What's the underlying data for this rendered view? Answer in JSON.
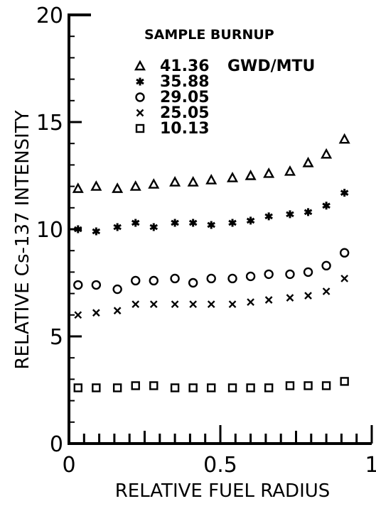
{
  "chart_data": {
    "type": "scatter",
    "xlabel": "RELATIVE FUEL RADIUS",
    "ylabel": "RELATIVE Cs-137 INTENSITY",
    "xlim": [
      0,
      1
    ],
    "ylim": [
      0,
      20
    ],
    "x_ticks": [
      "0",
      "0.5",
      "1"
    ],
    "y_ticks": [
      "0",
      "5",
      "10",
      "15",
      "20"
    ],
    "legend": {
      "title": "SAMPLE BURNUP",
      "placement": "top-right",
      "unit": "GWD/MTU"
    },
    "x": [
      0.03,
      0.09,
      0.16,
      0.22,
      0.28,
      0.35,
      0.41,
      0.47,
      0.54,
      0.6,
      0.66,
      0.73,
      0.79,
      0.85,
      0.91
    ],
    "series": [
      {
        "name": "41.36",
        "marker": "triangle",
        "values": [
          11.9,
          12.0,
          11.9,
          12.0,
          12.1,
          12.2,
          12.2,
          12.3,
          12.4,
          12.5,
          12.6,
          12.7,
          13.1,
          13.5,
          14.2
        ]
      },
      {
        "name": "35.88",
        "marker": "star",
        "values": [
          10.0,
          9.9,
          10.1,
          10.3,
          10.1,
          10.3,
          10.3,
          10.2,
          10.3,
          10.4,
          10.6,
          10.7,
          10.8,
          11.1,
          11.7
        ]
      },
      {
        "name": "29.05",
        "marker": "circle",
        "values": [
          7.4,
          7.4,
          7.2,
          7.6,
          7.6,
          7.7,
          7.5,
          7.7,
          7.7,
          7.8,
          7.9,
          7.9,
          8.0,
          8.3,
          8.9
        ]
      },
      {
        "name": "25.05",
        "marker": "cross",
        "values": [
          6.0,
          6.1,
          6.2,
          6.5,
          6.5,
          6.5,
          6.5,
          6.5,
          6.5,
          6.6,
          6.7,
          6.8,
          6.9,
          7.1,
          7.7
        ]
      },
      {
        "name": "10.13",
        "marker": "square",
        "values": [
          2.6,
          2.6,
          2.6,
          2.7,
          2.7,
          2.6,
          2.6,
          2.6,
          2.6,
          2.6,
          2.6,
          2.7,
          2.7,
          2.7,
          2.9
        ]
      }
    ]
  }
}
